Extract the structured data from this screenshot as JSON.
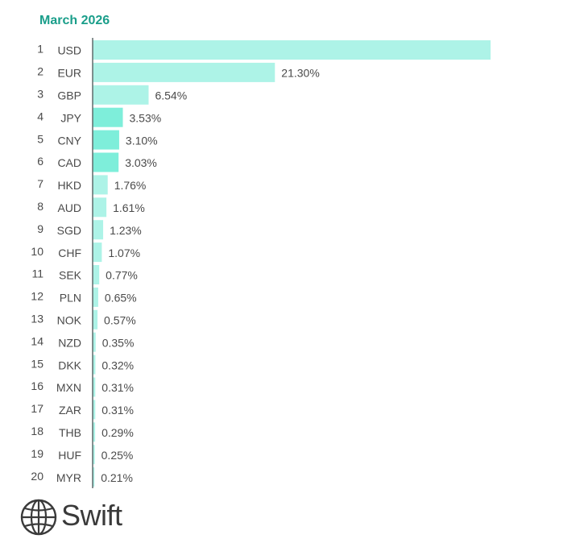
{
  "header": {
    "title": "March 2026"
  },
  "brand": {
    "name": "Swift"
  },
  "colors": {
    "bar_default": "#adf3e7",
    "bar_highlight": "#7eeeda",
    "axis": "#5f6b6b",
    "label": "#4a4a4a"
  },
  "chart_data": {
    "type": "bar",
    "orientation": "horizontal",
    "title": "March 2026",
    "ranks": [
      1,
      2,
      3,
      4,
      5,
      6,
      7,
      8,
      9,
      10,
      11,
      12,
      13,
      14,
      15,
      16,
      17,
      18,
      19,
      20
    ],
    "categories": [
      "USD",
      "EUR",
      "GBP",
      "JPY",
      "CNY",
      "CAD",
      "HKD",
      "AUD",
      "SGD",
      "CHF",
      "SEK",
      "PLN",
      "NOK",
      "NZD",
      "DKK",
      "MXN",
      "ZAR",
      "THB",
      "HUF",
      "MYR"
    ],
    "values": [
      46.5,
      21.3,
      6.54,
      3.53,
      3.1,
      3.03,
      1.76,
      1.61,
      1.23,
      1.07,
      0.77,
      0.65,
      0.57,
      0.35,
      0.32,
      0.31,
      0.31,
      0.29,
      0.25,
      0.21
    ],
    "value_labels": [
      "",
      "21.30%",
      "6.54%",
      "3.53%",
      "3.10%",
      "3.03%",
      "1.76%",
      "1.61%",
      "1.23%",
      "1.07%",
      "0.77%",
      "0.65%",
      "0.57%",
      "0.35%",
      "0.32%",
      "0.31%",
      "0.31%",
      "0.29%",
      "0.25%",
      "0.21%"
    ],
    "highlighted": [
      "JPY",
      "CNY",
      "CAD"
    ],
    "xlim": [
      0,
      46.5
    ],
    "grid": false,
    "legend": "none"
  }
}
